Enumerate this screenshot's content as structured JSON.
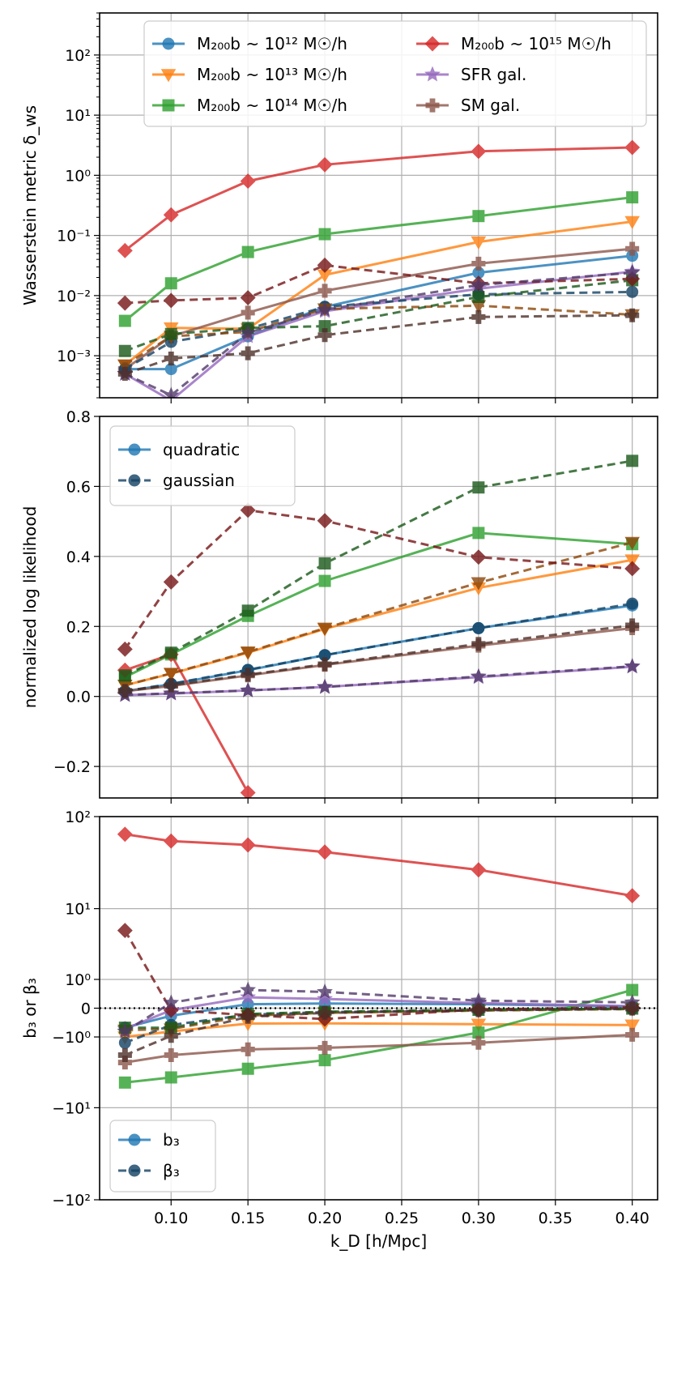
{
  "colors": {
    "m12": "#1f77b4",
    "m13": "#ff7f0e",
    "m14": "#2ca02c",
    "m15": "#d62728",
    "sfr": "#9467bd",
    "sm": "#8c564b",
    "grid": "#b0b0b0"
  },
  "chart_data": [
    {
      "type": "line",
      "ylabel": "Wasserstein metric δ_ws",
      "yscale": "log",
      "ylim": [
        0.0002,
        500
      ],
      "yticks": [
        {
          "v": 0.001,
          "label": "10⁻³"
        },
        {
          "v": 0.01,
          "label": "10⁻²"
        },
        {
          "v": 0.1,
          "label": "10⁻¹"
        },
        {
          "v": 1,
          "label": "10⁰"
        },
        {
          "v": 10,
          "label": "10¹"
        },
        {
          "v": 100,
          "label": "10²"
        }
      ],
      "x": [
        0.07,
        0.1,
        0.15,
        0.2,
        0.3,
        0.4
      ],
      "legend_position": "top",
      "legend": [
        {
          "text": "M₂₀₀b ~ 10¹² M☉/h",
          "key": "m12",
          "marker": "circle"
        },
        {
          "text": "M₂₀₀b ~ 10¹³ M☉/h",
          "key": "m13",
          "marker": "tri_down"
        },
        {
          "text": "M₂₀₀b ~ 10¹⁴ M☉/h",
          "key": "m14",
          "marker": "square"
        },
        {
          "text": "M₂₀₀b ~ 10¹⁵ M☉/h",
          "key": "m15",
          "marker": "diamond"
        },
        {
          "text": "SFR gal.",
          "key": "sfr",
          "marker": "star"
        },
        {
          "text": "SM gal.",
          "key": "sm",
          "marker": "plus"
        }
      ],
      "series": [
        {
          "key": "m12",
          "marker": "circle",
          "values": [
            0.0006,
            0.0006,
            0.0021,
            0.0065,
            0.024,
            0.046
          ]
        },
        {
          "key": "m13",
          "marker": "tri_down",
          "values": [
            0.0007,
            0.0029,
            0.0028,
            0.022,
            0.078,
            0.17
          ]
        },
        {
          "key": "m14",
          "marker": "square",
          "values": [
            0.0038,
            0.016,
            0.053,
            0.105,
            0.21,
            0.43
          ]
        },
        {
          "key": "m15",
          "marker": "diamond",
          "values": [
            0.056,
            0.22,
            0.8,
            1.5,
            2.5,
            2.9
          ]
        },
        {
          "key": "sfr",
          "marker": "star",
          "values": [
            0.0005,
            0.00018,
            0.0021,
            0.0055,
            0.013,
            0.025
          ]
        },
        {
          "key": "sm",
          "marker": "plus",
          "values": [
            0.0006,
            0.0021,
            0.0052,
            0.012,
            0.034,
            0.06
          ]
        },
        {
          "key": "m12",
          "marker": "circle",
          "dashed": true,
          "values": [
            0.0006,
            0.0017,
            0.0028,
            0.0065,
            0.0105,
            0.0115
          ]
        },
        {
          "key": "m13",
          "marker": "tri_down",
          "dashed": true,
          "values": [
            0.0007,
            0.0021,
            0.0025,
            0.006,
            0.0068,
            0.0048
          ]
        },
        {
          "key": "m14",
          "marker": "square",
          "dashed": true,
          "values": [
            0.0012,
            0.0023,
            0.0029,
            0.0031,
            0.0095,
            0.018
          ]
        },
        {
          "key": "m15",
          "marker": "diamond",
          "dashed": true,
          "values": [
            0.0075,
            0.0083,
            0.0092,
            0.032,
            0.016,
            0.019
          ]
        },
        {
          "key": "sfr",
          "marker": "star",
          "dashed": true,
          "values": [
            0.0005,
            0.00022,
            0.0024,
            0.0058,
            0.015,
            0.024
          ]
        },
        {
          "key": "sm",
          "marker": "plus",
          "dashed": true,
          "values": [
            0.0005,
            0.0009,
            0.0011,
            0.0022,
            0.0044,
            0.0047
          ]
        }
      ]
    },
    {
      "type": "line",
      "ylabel": "normalized log likelihood",
      "yscale": "linear",
      "ylim": [
        -0.29,
        0.8
      ],
      "yticks": [
        {
          "v": -0.2,
          "label": "−0.2"
        },
        {
          "v": 0.0,
          "label": "0.0"
        },
        {
          "v": 0.2,
          "label": "0.2"
        },
        {
          "v": 0.4,
          "label": "0.4"
        },
        {
          "v": 0.6,
          "label": "0.6"
        },
        {
          "v": 0.8,
          "label": "0.8"
        }
      ],
      "x": [
        0.07,
        0.1,
        0.15,
        0.2,
        0.3,
        0.4
      ],
      "legend_position": "top-left",
      "legend": [
        {
          "text": "quadratic",
          "key": "m12",
          "marker": "circle"
        },
        {
          "text": "gaussian",
          "key": "m12",
          "marker": "circle",
          "dashed": true
        }
      ],
      "series": [
        {
          "key": "m12",
          "marker": "circle",
          "values": [
            0.015,
            0.035,
            0.075,
            0.118,
            0.195,
            0.26
          ]
        },
        {
          "key": "m13",
          "marker": "tri_down",
          "values": [
            0.032,
            0.065,
            0.125,
            0.193,
            0.31,
            0.39
          ]
        },
        {
          "key": "m14",
          "marker": "square",
          "values": [
            0.055,
            0.12,
            0.23,
            0.33,
            0.467,
            0.435
          ]
        },
        {
          "key": "m15",
          "marker": "diamond",
          "values": [
            0.075,
            0.12,
            -0.275,
            null,
            null,
            null
          ]
        },
        {
          "key": "sfr",
          "marker": "star",
          "values": [
            0.004,
            0.008,
            0.017,
            0.027,
            0.055,
            0.085
          ]
        },
        {
          "key": "sm",
          "marker": "plus",
          "values": [
            0.015,
            0.03,
            0.06,
            0.09,
            0.145,
            0.195
          ]
        },
        {
          "key": "m12",
          "marker": "circle",
          "dashed": true,
          "values": [
            0.015,
            0.036,
            0.076,
            0.118,
            0.195,
            0.265
          ]
        },
        {
          "key": "m13",
          "marker": "tri_down",
          "dashed": true,
          "values": [
            0.032,
            0.066,
            0.127,
            0.195,
            0.325,
            0.44
          ]
        },
        {
          "key": "m14",
          "marker": "square",
          "dashed": true,
          "values": [
            0.06,
            0.125,
            0.245,
            0.38,
            0.597,
            0.673
          ]
        },
        {
          "key": "m15",
          "marker": "diamond",
          "dashed": true,
          "values": [
            0.135,
            0.327,
            0.532,
            0.502,
            0.398,
            0.365
          ]
        },
        {
          "key": "sfr",
          "marker": "star",
          "dashed": true,
          "values": [
            0.004,
            0.009,
            0.017,
            0.027,
            0.057,
            0.086
          ]
        },
        {
          "key": "sm",
          "marker": "plus",
          "dashed": true,
          "values": [
            0.016,
            0.032,
            0.062,
            0.092,
            0.15,
            0.203
          ]
        }
      ]
    },
    {
      "type": "line",
      "ylabel": "b₃ or β₃",
      "yscale": "symlog",
      "ylim": [
        -100,
        100
      ],
      "yticks": [
        {
          "v": -100,
          "label": "−10²"
        },
        {
          "v": -10,
          "label": "−10¹"
        },
        {
          "v": -1,
          "label": "−10⁰"
        },
        {
          "v": 0,
          "label": "0"
        },
        {
          "v": 1,
          "label": "10⁰"
        },
        {
          "v": 10,
          "label": "10¹"
        },
        {
          "v": 100,
          "label": "10²"
        }
      ],
      "xlabel": "k_D [h/Mpc]",
      "xticks": [
        "0.10",
        "0.15",
        "0.20",
        "0.25",
        "0.30",
        "0.35",
        "0.40"
      ],
      "x": [
        0.07,
        0.1,
        0.15,
        0.2,
        0.3,
        0.4
      ],
      "legend_position": "bottom-left",
      "legend": [
        {
          "text": "b₃",
          "key": "m12",
          "marker": "circle"
        },
        {
          "text": "β₃",
          "key": "m12",
          "marker": "circle",
          "dashed": true
        }
      ],
      "series": [
        {
          "key": "m12",
          "marker": "circle",
          "values": [
            -0.6,
            -0.2,
            0.1,
            0.12,
            0.1,
            0.04
          ]
        },
        {
          "key": "m13",
          "marker": "tri_down",
          "values": [
            -1.0,
            -0.75,
            -0.45,
            -0.44,
            -0.47,
            -0.5
          ]
        },
        {
          "key": "m14",
          "marker": "square",
          "values": [
            -5.0,
            -4.3,
            -3.3,
            -2.5,
            -0.8,
            0.55
          ]
        },
        {
          "key": "m15",
          "marker": "diamond",
          "values": [
            65,
            55,
            50,
            42,
            27,
            14
          ]
        },
        {
          "key": "sfr",
          "marker": "star",
          "values": [
            -0.65,
            -0.05,
            0.3,
            0.25,
            0.13,
            0.05
          ]
        },
        {
          "key": "sm",
          "marker": "plus",
          "values": [
            -2.7,
            -2.1,
            -1.7,
            -1.6,
            -1.3,
            -0.9
          ]
        },
        {
          "key": "m12",
          "marker": "circle",
          "dashed": true,
          "values": [
            -1.3,
            -0.5,
            -0.17,
            -0.1,
            -0.05,
            -0.02
          ]
        },
        {
          "key": "m13",
          "marker": "tri_down",
          "dashed": true,
          "values": [
            -0.7,
            -0.65,
            -0.2,
            -0.12,
            -0.06,
            -0.02
          ]
        },
        {
          "key": "m14",
          "marker": "square",
          "dashed": true,
          "values": [
            -0.6,
            -0.6,
            -0.15,
            -0.09,
            -0.04,
            -0.01
          ]
        },
        {
          "key": "m15",
          "marker": "diamond",
          "dashed": true,
          "values": [
            5.5,
            -0.05,
            -0.18,
            -0.3,
            -0.03,
            0.02
          ]
        },
        {
          "key": "sfr",
          "marker": "star",
          "dashed": true,
          "values": [
            -0.75,
            0.14,
            0.55,
            0.48,
            0.2,
            0.15
          ]
        },
        {
          "key": "sm",
          "marker": "plus",
          "dashed": true,
          "values": [
            -2.1,
            -0.95,
            -0.23,
            -0.12,
            -0.05,
            -0.01
          ]
        }
      ]
    }
  ]
}
